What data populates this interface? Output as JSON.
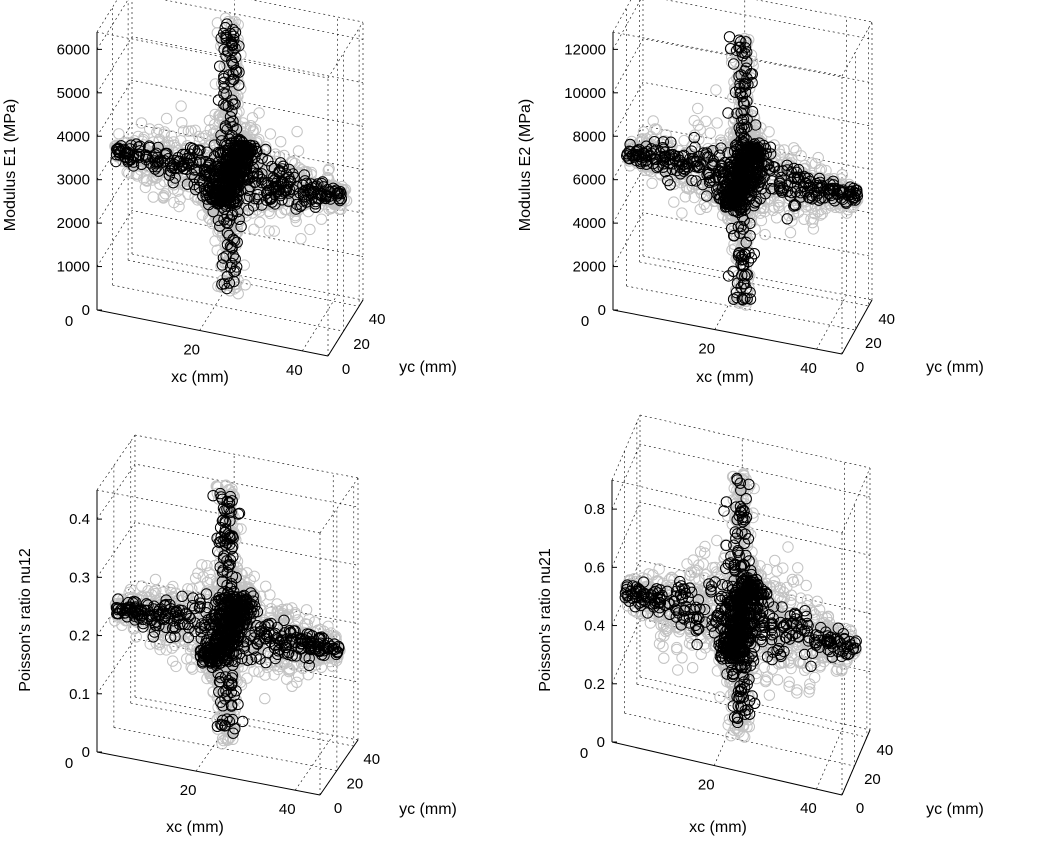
{
  "chart_data": [
    {
      "type": "scatter",
      "zlabel": "Modulus E1 (MPa)",
      "xlabel": "xc (mm)",
      "ylabel": "yc (mm)",
      "z_ticks": [
        "0",
        "1000",
        "2000",
        "3000",
        "4000",
        "5000",
        "6000"
      ],
      "x_ticks": [
        "0",
        "20",
        "40"
      ],
      "y_ticks": [
        "0",
        "20",
        "40"
      ],
      "zlim": [
        0,
        6400
      ],
      "xlim": [
        0,
        45
      ],
      "ylim": [
        0,
        45
      ],
      "center_value": 3000,
      "grid": true,
      "series": [
        {
          "color": "#c3c3c3",
          "description_key": "grey",
          "arm_spread_center": 1200,
          "arm_spread_edge": 200,
          "spike_min": 300,
          "spike_max": 6600
        },
        {
          "color": "#000000",
          "description_key": "black",
          "arm_spread_center": 600,
          "arm_spread_edge": 100,
          "spike_min": 400,
          "spike_max": 6500
        }
      ]
    },
    {
      "type": "scatter",
      "zlabel": "Modulus E2 (MPa)",
      "xlabel": "xc (mm)",
      "ylabel": "yc (mm)",
      "z_ticks": [
        "0",
        "2000",
        "4000",
        "6000",
        "8000",
        "10000",
        "12000"
      ],
      "x_ticks": [
        "0",
        "20",
        "40"
      ],
      "y_ticks": [
        "0",
        "20",
        "40"
      ],
      "zlim": [
        0,
        12800
      ],
      "xlim": [
        0,
        45
      ],
      "ylim": [
        0,
        45
      ],
      "center_value": 6000,
      "grid": true,
      "series": [
        {
          "color": "#c3c3c3",
          "description_key": "grey",
          "arm_spread_center": 2400,
          "arm_spread_edge": 400,
          "spike_min": 0,
          "spike_max": 12300
        },
        {
          "color": "#000000",
          "description_key": "black",
          "arm_spread_center": 1200,
          "arm_spread_edge": 200,
          "spike_min": 200,
          "spike_max": 12200
        }
      ]
    },
    {
      "type": "scatter",
      "zlabel": "Poisson's ratio nu12",
      "xlabel": "xc (mm)",
      "ylabel": "yc (mm)",
      "z_ticks": [
        "0",
        "0.1",
        "0.2",
        "0.3",
        "0.4"
      ],
      "x_ticks": [
        "0",
        "20",
        "40"
      ],
      "y_ticks": [
        "0",
        "20",
        "40"
      ],
      "zlim": [
        0,
        0.45
      ],
      "xlim": [
        0,
        45
      ],
      "ylim": [
        0,
        45
      ],
      "center_value": 0.2,
      "grid": true,
      "series": [
        {
          "color": "#c3c3c3",
          "description_key": "grey",
          "arm_spread_center": 0.09,
          "arm_spread_edge": 0.02,
          "spike_min": 0.0,
          "spike_max": 0.45
        },
        {
          "color": "#000000",
          "description_key": "black",
          "arm_spread_center": 0.05,
          "arm_spread_edge": 0.01,
          "spike_min": 0.02,
          "spike_max": 0.43
        }
      ]
    },
    {
      "type": "scatter",
      "zlabel": "Poisson's ratio nu21",
      "xlabel": "xc (mm)",
      "ylabel": "yc (mm)",
      "z_ticks": [
        "0",
        "0.2",
        "0.4",
        "0.6",
        "0.8"
      ],
      "x_ticks": [
        "0",
        "20",
        "40"
      ],
      "y_ticks": [
        "0",
        "20",
        "40"
      ],
      "zlim": [
        0,
        0.9
      ],
      "xlim": [
        0,
        45
      ],
      "ylim": [
        0,
        45
      ],
      "center_value": 0.4,
      "grid": true,
      "series": [
        {
          "color": "#c3c3c3",
          "description_key": "grey",
          "arm_spread_center": 0.22,
          "arm_spread_edge": 0.04,
          "spike_min": 0.0,
          "spike_max": 0.9
        },
        {
          "color": "#000000",
          "description_key": "black",
          "arm_spread_center": 0.12,
          "arm_spread_edge": 0.02,
          "spike_min": 0.04,
          "spike_max": 0.88
        }
      ]
    }
  ]
}
